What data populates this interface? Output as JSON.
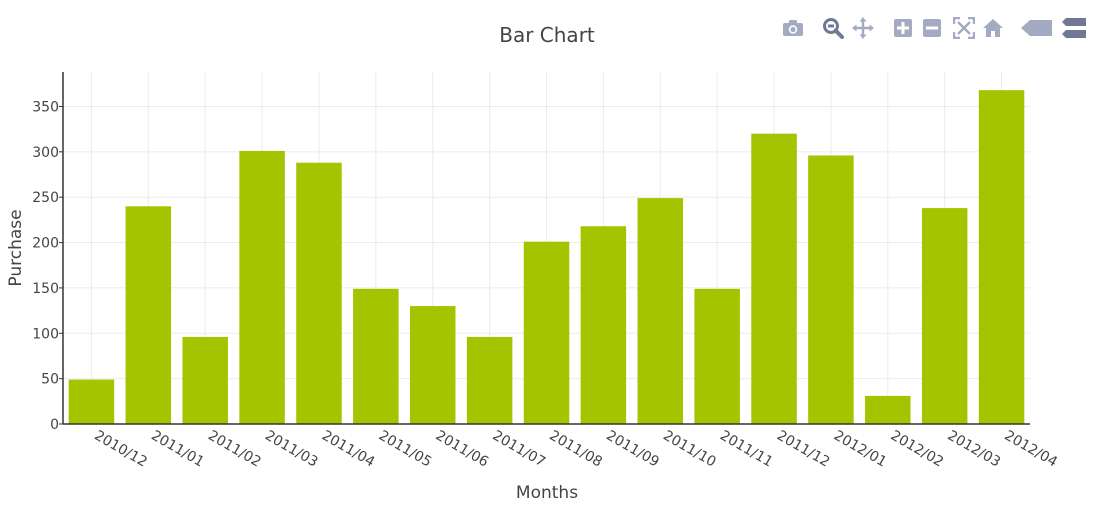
{
  "modebar": {
    "icons": [
      "camera-icon",
      "zoom-icon",
      "pan-icon",
      "zoom-in-icon",
      "zoom-out-icon",
      "autoscale-icon",
      "home-icon",
      "hover-closest-icon",
      "hover-compare-icon"
    ],
    "color": "#a3abc3",
    "active_color": "#6f7896"
  },
  "chart_data": {
    "type": "bar",
    "title": "Bar Chart",
    "xlabel": "Months",
    "ylabel": "Purchase",
    "categories": [
      "2010/12",
      "2011/01",
      "2011/02",
      "2011/03",
      "2011/04",
      "2011/05",
      "2011/06",
      "2011/07",
      "2011/08",
      "2011/09",
      "2011/10",
      "2011/11",
      "2011/12",
      "2012/01",
      "2012/02",
      "2012/03",
      "2012/04"
    ],
    "values": [
      49,
      240,
      96,
      301,
      288,
      149,
      130,
      96,
      201,
      218,
      249,
      149,
      320,
      296,
      31,
      238,
      368
    ],
    "ylim": [
      0,
      388
    ],
    "yticks": [
      0,
      50,
      100,
      150,
      200,
      250,
      300,
      350
    ],
    "grid": true,
    "bar_color": "#a5c400",
    "grid_color": "#ebebeb",
    "axis_color": "#333333",
    "text_color": "#444444"
  }
}
